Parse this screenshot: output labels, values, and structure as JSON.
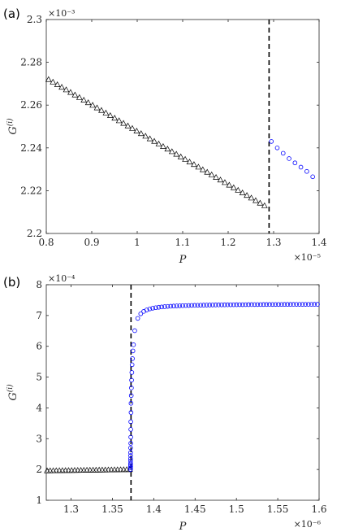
{
  "chart_data": [
    {
      "panel_label": "(a)",
      "type": "scatter",
      "xlabel": "P",
      "ylabel": "G^(i)",
      "ylabel_base": "G",
      "ylabel_sup": "(i)",
      "x_exponent": "×10⁻⁵",
      "y_exponent": "×10⁻³",
      "xlim": [
        0.8,
        1.4
      ],
      "ylim": [
        2.2,
        2.3
      ],
      "xticks": [
        0.8,
        0.9,
        1,
        1.1,
        1.2,
        1.3,
        1.4
      ],
      "xtick_labels": [
        "0.8",
        "0.9",
        "1",
        "1.1",
        "1.2",
        "1.3",
        "1.4"
      ],
      "yticks": [
        2.2,
        2.22,
        2.24,
        2.26,
        2.28,
        2.3
      ],
      "ytick_labels": [
        "2.2",
        "2.22",
        "2.24",
        "2.26",
        "2.28",
        "2.3"
      ],
      "vline_x": 1.29,
      "series": [
        {
          "marker": "triangle",
          "color": "#000000",
          "x_start": 0.805,
          "x_end": 1.28,
          "y_start": 2.272,
          "y_end": 2.213,
          "n": 50
        },
        {
          "marker": "circle",
          "color": "#0000ff",
          "x": [
            1.295,
            1.308,
            1.321,
            1.334,
            1.347,
            1.36,
            1.373,
            1.386
          ],
          "y": [
            2.243,
            2.24,
            2.2375,
            2.235,
            2.233,
            2.231,
            2.229,
            2.2265
          ]
        }
      ]
    },
    {
      "panel_label": "(b)",
      "type": "scatter",
      "xlabel": "P",
      "ylabel": "G^(i)",
      "ylabel_base": "G",
      "ylabel_sup": "(i)",
      "x_exponent": "×10⁻⁶",
      "y_exponent": "×10⁻⁴",
      "xlim": [
        1.27,
        1.6
      ],
      "ylim": [
        1,
        8
      ],
      "xticks": [
        1.3,
        1.35,
        1.4,
        1.45,
        1.5,
        1.55,
        1.6
      ],
      "xtick_labels": [
        "1.3",
        "1.35",
        "1.4",
        "1.45",
        "1.5",
        "1.55",
        "1.6"
      ],
      "yticks": [
        1,
        2,
        3,
        4,
        5,
        6,
        7,
        8
      ],
      "ytick_labels": [
        "1",
        "2",
        "3",
        "4",
        "5",
        "6",
        "7",
        "8"
      ],
      "vline_x": 1.3725,
      "series": [
        {
          "marker": "triangle",
          "color": "#000000",
          "x_start": 1.271,
          "x_end": 1.371,
          "y_start": 1.96,
          "y_end": 2.0,
          "n": 28
        },
        {
          "marker": "circle",
          "color": "#0000ff",
          "x": [
            1.372,
            1.372,
            1.372,
            1.372,
            1.372,
            1.372,
            1.372,
            1.372,
            1.372,
            1.372,
            1.3722,
            1.3722,
            1.3722,
            1.3722,
            1.3725,
            1.3725,
            1.3728,
            1.373,
            1.3732,
            1.3735,
            1.3738,
            1.3742,
            1.3748,
            1.3755
          ],
          "y": [
            2.0,
            2.05,
            2.1,
            2.15,
            2.2,
            2.28,
            2.35,
            2.45,
            2.55,
            2.7,
            2.85,
            3.05,
            3.3,
            3.55,
            3.85,
            4.15,
            4.4,
            4.65,
            4.9,
            5.15,
            5.4,
            5.6,
            5.85,
            6.05
          ],
          "curve": {
            "x_start": 1.377,
            "x_end": 1.598,
            "n": 62,
            "a": 7.38,
            "b": 0.00375,
            "c": 1.3727
          }
        }
      ]
    }
  ]
}
